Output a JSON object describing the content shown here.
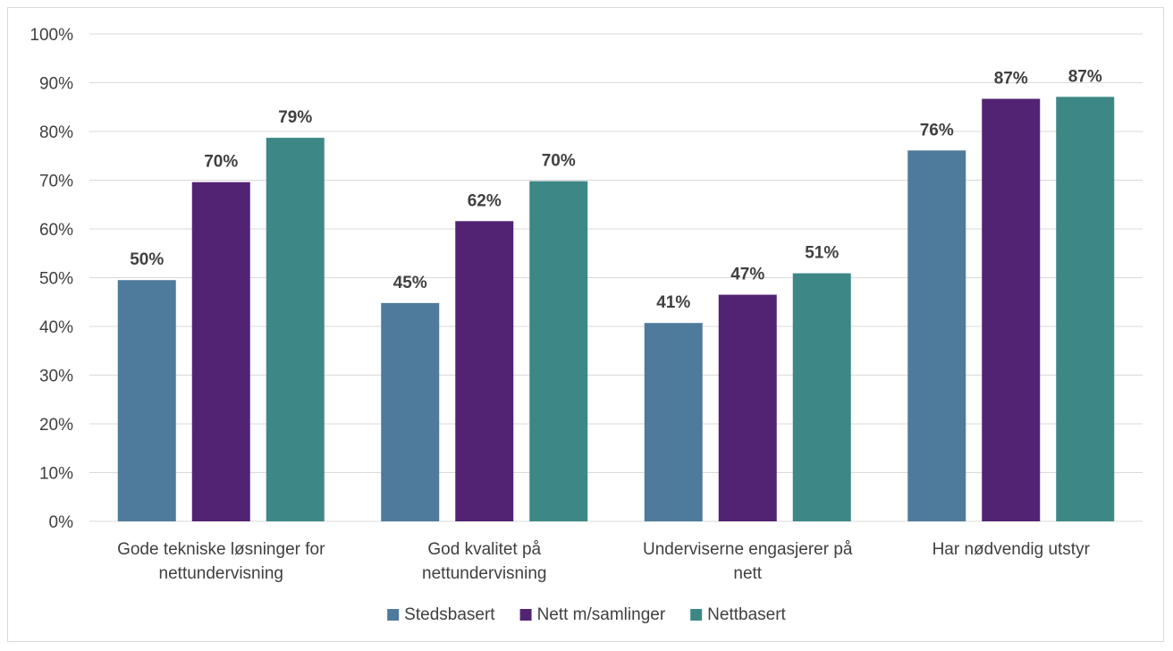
{
  "chart_data": {
    "type": "bar",
    "categories": [
      [
        "Gode tekniske løsninger for",
        "nettundervisning"
      ],
      [
        "God kvalitet på",
        "nettundervisning"
      ],
      [
        "Underviserne engasjerer på",
        "nett"
      ],
      [
        "Har nødvendig utstyr"
      ]
    ],
    "series": [
      {
        "name": "Stedsbasert",
        "color": "#4e7b9b",
        "values": [
          49.5,
          44.8,
          40.7,
          76.1
        ],
        "labels": [
          "50%",
          "45%",
          "41%",
          "76%"
        ]
      },
      {
        "name": "Nett m/samlinger",
        "color": "#532373",
        "values": [
          69.6,
          61.6,
          46.5,
          86.7
        ],
        "labels": [
          "70%",
          "62%",
          "47%",
          "87%"
        ]
      },
      {
        "name": "Nettbasert",
        "color": "#3d8886",
        "values": [
          78.7,
          69.8,
          50.9,
          87.1
        ],
        "labels": [
          "79%",
          "70%",
          "51%",
          "87%"
        ]
      }
    ],
    "y_ticks": [
      "0%",
      "10%",
      "20%",
      "30%",
      "40%",
      "50%",
      "60%",
      "70%",
      "80%",
      "90%",
      "100%"
    ],
    "ylim": [
      0,
      100
    ],
    "grid": true,
    "legend_position": "bottom",
    "title": "",
    "xlabel": "",
    "ylabel": ""
  }
}
